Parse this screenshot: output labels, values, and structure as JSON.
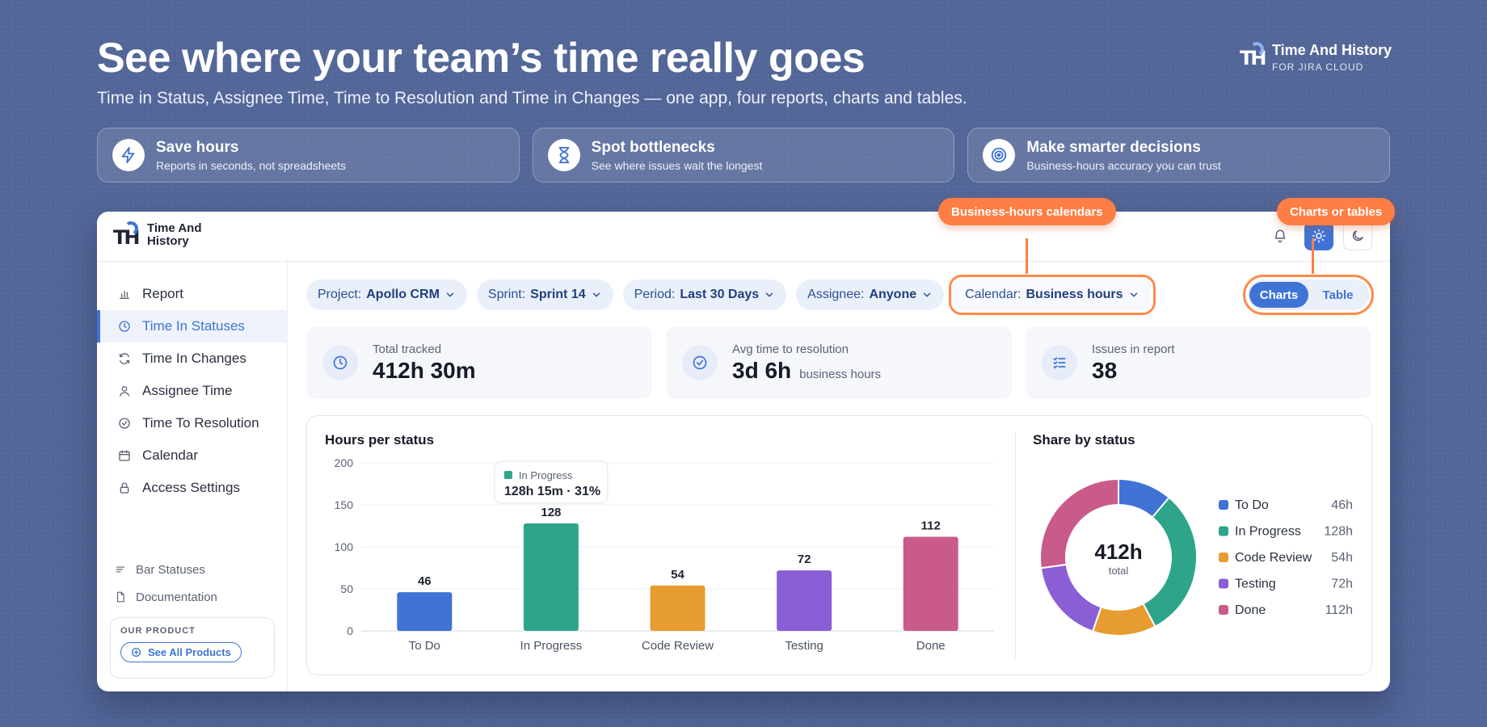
{
  "hero": {
    "title": "See where your team’s time really goes",
    "subtitle": "Time in Status, Assignee Time, Time to Resolution and Time in Changes — one app, four reports, charts and tables."
  },
  "brand": {
    "name": "Time And History",
    "sub": "FOR JIRA CLOUD",
    "mark": "TH"
  },
  "features": [
    {
      "title": "Save hours",
      "sub": "Reports in seconds, not spreadsheets",
      "icon": "lightning-icon"
    },
    {
      "title": "Spot bottlenecks",
      "sub": "See where issues wait the longest",
      "icon": "hourglass-icon"
    },
    {
      "title": "Make smarter decisions",
      "sub": "Business-hours accuracy you can trust",
      "icon": "target-icon"
    }
  ],
  "app": {
    "logo": {
      "mark": "TH",
      "name": "Time And History"
    },
    "sidebar": {
      "items": [
        {
          "label": "Report",
          "icon": "bar-chart-icon",
          "active": false
        },
        {
          "label": "Time In Statuses",
          "icon": "clock-icon",
          "active": true
        },
        {
          "label": "Time In Changes",
          "icon": "refresh-icon",
          "active": false
        },
        {
          "label": "Assignee Time",
          "icon": "user-icon",
          "active": false
        },
        {
          "label": "Time To Resolution",
          "icon": "check-circle-icon",
          "active": false
        },
        {
          "label": "Calendar",
          "icon": "calendar-icon",
          "active": false
        },
        {
          "label": "Access Settings",
          "icon": "lock-icon",
          "active": false
        }
      ],
      "sub_items": [
        {
          "label": "Bar Statuses",
          "icon": "lines-icon"
        },
        {
          "label": "Documentation",
          "icon": "document-icon"
        }
      ],
      "product": {
        "label": "OUR PRODUCT",
        "button": "See All Products"
      }
    },
    "filters": [
      {
        "key": "Project:",
        "value": "Apollo CRM"
      },
      {
        "key": "Sprint:",
        "value": "Sprint 14"
      },
      {
        "key": "Period:",
        "value": "Last 30 Days"
      },
      {
        "key": "Assignee:",
        "value": "Anyone"
      },
      {
        "key": "Calendar:",
        "value": "Business hours"
      }
    ],
    "view_toggle": {
      "options": [
        "Charts",
        "Table"
      ],
      "selected": "Charts"
    },
    "callouts": {
      "calendar": "Business-hours calendars",
      "view": "Charts or tables"
    },
    "stats": [
      {
        "label": "Total tracked",
        "value": "412h 30m",
        "unit": "",
        "icon": "clock-icon"
      },
      {
        "label": "Avg time to resolution",
        "value": "3d 6h",
        "unit": "business hours",
        "icon": "check-circle-icon"
      },
      {
        "label": "Issues in report",
        "value": "38",
        "unit": "",
        "icon": "checklist-icon"
      }
    ],
    "bar_chart_title": "Hours per status",
    "donut_chart_title": "Share by status",
    "tooltip": {
      "series": "In Progress",
      "value": "128h 15m · 31%"
    },
    "donut_center": {
      "value": "412h",
      "label": "total"
    },
    "legend": [
      {
        "label": "To Do",
        "value": "46h"
      },
      {
        "label": "In Progress",
        "value": "128h"
      },
      {
        "label": "Code Review",
        "value": "54h"
      },
      {
        "label": "Testing",
        "value": "72h"
      },
      {
        "label": "Done",
        "value": "112h"
      }
    ]
  },
  "colors": {
    "accent": "#3f73d6",
    "callout": "#ff7e45",
    "status": [
      "#3f73d6",
      "#2ea58a",
      "#e69c30",
      "#8a5fd6",
      "#c95b8b"
    ]
  },
  "chart_data": [
    {
      "type": "bar",
      "title": "Hours per status",
      "categories": [
        "To Do",
        "In Progress",
        "Code Review",
        "Testing",
        "Done"
      ],
      "values": [
        46,
        128,
        54,
        72,
        112
      ],
      "ylim": [
        0,
        200
      ],
      "yticks": [
        0,
        50,
        100,
        150,
        200
      ],
      "grid": true,
      "data_labels": true
    },
    {
      "type": "pie",
      "title": "Share by status",
      "categories": [
        "To Do",
        "In Progress",
        "Code Review",
        "Testing",
        "Done"
      ],
      "values": [
        46,
        128,
        54,
        72,
        112
      ],
      "legend": "right"
    }
  ]
}
